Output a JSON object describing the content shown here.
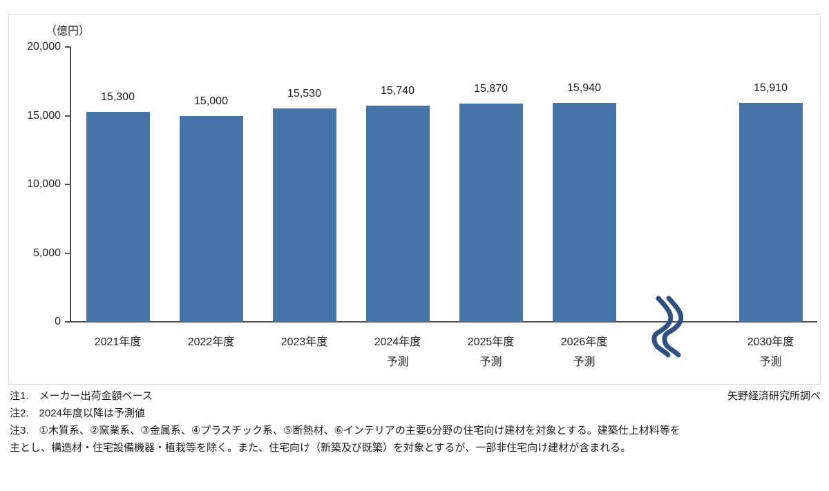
{
  "chart_data": {
    "type": "bar",
    "title": "",
    "unit_label": "（億円）",
    "xlabel": "",
    "ylabel": "（億円）",
    "ylim": [
      0,
      20000
    ],
    "grid": false,
    "legend": false,
    "yticks": [
      {
        "value": 0,
        "label": "0"
      },
      {
        "value": 5000,
        "label": "5,000"
      },
      {
        "value": 10000,
        "label": "10,000"
      },
      {
        "value": 15000,
        "label": "15,000"
      },
      {
        "value": 20000,
        "label": "20,000"
      }
    ],
    "bars": [
      {
        "category": "2021年度",
        "sublabel": "",
        "value": 15300,
        "value_label": "15,300",
        "slot": 0
      },
      {
        "category": "2022年度",
        "sublabel": "",
        "value": 15000,
        "value_label": "15,000",
        "slot": 1
      },
      {
        "category": "2023年度",
        "sublabel": "",
        "value": 15530,
        "value_label": "15,530",
        "slot": 2
      },
      {
        "category": "2024年度",
        "sublabel": "予測",
        "value": 15740,
        "value_label": "15,740",
        "slot": 3
      },
      {
        "category": "2025年度",
        "sublabel": "予測",
        "value": 15870,
        "value_label": "15,870",
        "slot": 4
      },
      {
        "category": "2026年度",
        "sublabel": "予測",
        "value": 15940,
        "value_label": "15,940",
        "slot": 5
      },
      {
        "category": "2030年度",
        "sublabel": "予測",
        "value": 15910,
        "value_label": "15,910",
        "slot": 7
      }
    ],
    "axis_break": {
      "slot": 6,
      "symbol": "double-wavy-line"
    }
  },
  "notes": {
    "note1": "注1.　メーカー出荷金額ベース",
    "note2": "注2.　2024年度以降は予測値",
    "note3_line1": "注3.　①木質系、②窯業系、③金属系、④プラスチック系、⑤断熱材、⑥インテリアの主要6分野の住宅向け建材を対象とする。建築仕上材料等を",
    "note3_line2": "主とし、構造材・住宅設備機器・植栽等を除く。また、住宅向け（新築及び既築）を対象とするが、一部非住宅向け建材が含まれる。"
  },
  "source": "矢野経済研究所調べ",
  "colors": {
    "bar": "#4673A8",
    "break_symbol": "#30507F",
    "axis": "#4D4D4D",
    "frame_border": "#D9D9D9",
    "text": "#262626"
  }
}
